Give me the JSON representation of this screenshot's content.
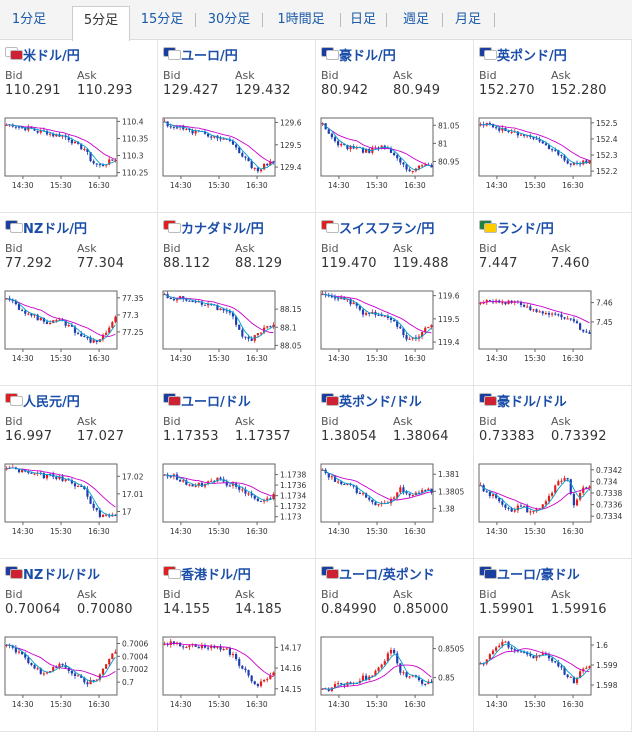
{
  "tabs": [
    {
      "label": "1分足",
      "active": false
    },
    {
      "label": "5分足",
      "active": true
    },
    {
      "label": "15分足",
      "active": false
    },
    {
      "label": "30分足",
      "active": false
    },
    {
      "label": "1時間足",
      "active": false
    },
    {
      "label": "日足",
      "active": false
    },
    {
      "label": "週足",
      "active": false
    },
    {
      "label": "月足",
      "active": false
    }
  ],
  "labels": {
    "bid": "Bid",
    "ask": "Ask"
  },
  "colors": {
    "link": "#1a4da8",
    "up": "#e0201e",
    "down": "#1f3cb0",
    "ma_long": "#cc00cc",
    "ma_short": "#00a0d0"
  },
  "pairs": [
    {
      "name": "米ドル/円",
      "bid": "110.291",
      "ask": "110.293",
      "flags": [
        "#ffffff",
        "#cc2233"
      ],
      "chart_data": {
        "type": "candlestick",
        "x_ticks": [
          "14:30",
          "15:30",
          "16:30"
        ],
        "y_ticks": [
          "110.4",
          "110.35",
          "110.3",
          "110.25"
        ],
        "ylim": [
          110.24,
          110.41
        ],
        "trend": [
          110.39,
          110.39,
          110.38,
          110.38,
          110.37,
          110.37,
          110.36,
          110.36,
          110.35,
          110.33,
          110.32,
          110.28,
          110.27,
          110.28,
          110.29
        ],
        "ma": true
      }
    },
    {
      "name": "ユーロ/円",
      "bid": "129.427",
      "ask": "129.432",
      "flags": [
        "#1a3da0",
        "#ffffff"
      ],
      "chart_data": {
        "type": "candlestick",
        "x_ticks": [
          "14:30",
          "15:30",
          "16:30"
        ],
        "y_ticks": [
          "129.6",
          "129.5",
          "129.4"
        ],
        "ylim": [
          129.36,
          129.62
        ],
        "trend": [
          129.6,
          129.58,
          129.58,
          129.56,
          129.56,
          129.55,
          129.54,
          129.53,
          129.52,
          129.49,
          129.45,
          129.41,
          129.39,
          129.41,
          129.42
        ],
        "ma": true
      }
    },
    {
      "name": "豪ドル/円",
      "bid": "80.942",
      "ask": "80.949",
      "flags": [
        "#1a3da0",
        "#ffffff"
      ],
      "chart_data": {
        "type": "candlestick",
        "x_ticks": [
          "14:30",
          "15:30",
          "16:30"
        ],
        "y_ticks": [
          "81.05",
          "81",
          "80.95"
        ],
        "ylim": [
          80.91,
          81.07
        ],
        "trend": [
          81.05,
          81.02,
          81.0,
          80.99,
          80.99,
          80.98,
          80.98,
          80.99,
          80.99,
          80.97,
          80.95,
          80.92,
          80.93,
          80.94,
          80.94
        ],
        "ma": true
      }
    },
    {
      "name": "英ポンド/円",
      "bid": "152.270",
      "ask": "152.280",
      "flags": [
        "#1a3da0",
        "#ffffff"
      ],
      "chart_data": {
        "type": "candlestick",
        "x_ticks": [
          "14:30",
          "15:30",
          "16:30"
        ],
        "y_ticks": [
          "152.5",
          "152.4",
          "152.3",
          "152.2"
        ],
        "ylim": [
          152.17,
          152.53
        ],
        "trend": [
          152.5,
          152.49,
          152.47,
          152.46,
          152.44,
          152.43,
          152.41,
          152.39,
          152.36,
          152.34,
          152.31,
          152.26,
          152.24,
          152.25,
          152.27
        ],
        "ma": true
      }
    },
    {
      "name": "NZドル/円",
      "bid": "77.292",
      "ask": "77.304",
      "flags": [
        "#1a3da0",
        "#ffffff"
      ],
      "chart_data": {
        "type": "candlestick",
        "x_ticks": [
          "14:30",
          "15:30",
          "16:30"
        ],
        "y_ticks": [
          "77.35",
          "77.3",
          "77.25"
        ],
        "ylim": [
          77.2,
          77.37
        ],
        "trend": [
          77.35,
          77.33,
          77.31,
          77.3,
          77.29,
          77.28,
          77.28,
          77.28,
          77.27,
          77.25,
          77.24,
          77.22,
          77.23,
          77.26,
          77.29
        ],
        "ma": true
      }
    },
    {
      "name": "カナダドル/円",
      "bid": "88.112",
      "ask": "88.129",
      "flags": [
        "#e02020",
        "#ffffff"
      ],
      "chart_data": {
        "type": "candlestick",
        "x_ticks": [
          "14:30",
          "15:30",
          "16:30"
        ],
        "y_ticks": [
          "88.15",
          "88.1",
          "88.05"
        ],
        "ylim": [
          88.04,
          88.2
        ],
        "trend": [
          88.19,
          88.18,
          88.18,
          88.17,
          88.17,
          88.16,
          88.16,
          88.15,
          88.15,
          88.12,
          88.08,
          88.06,
          88.08,
          88.1,
          88.11
        ],
        "ma": true
      }
    },
    {
      "name": "スイスフラン/円",
      "bid": "119.470",
      "ask": "119.488",
      "flags": [
        "#e02020",
        "#ffffff"
      ],
      "chart_data": {
        "type": "candlestick",
        "x_ticks": [
          "14:30",
          "15:30",
          "16:30"
        ],
        "y_ticks": [
          "119.6",
          "119.5",
          "119.4"
        ],
        "ylim": [
          119.37,
          119.62
        ],
        "trend": [
          119.6,
          119.6,
          119.59,
          119.58,
          119.56,
          119.53,
          119.52,
          119.52,
          119.51,
          119.49,
          119.45,
          119.4,
          119.42,
          119.45,
          119.47
        ],
        "ma": true
      }
    },
    {
      "name": "ランド/円",
      "bid": "7.447",
      "ask": "7.460",
      "flags": [
        "#208040",
        "#ffcc00"
      ],
      "chart_data": {
        "type": "candlestick",
        "x_ticks": [
          "14:30",
          "15:30",
          "16:30"
        ],
        "y_ticks": [
          "7.46",
          "7.45"
        ],
        "ylim": [
          7.436,
          7.466
        ],
        "trend": [
          7.461,
          7.461,
          7.461,
          7.46,
          7.46,
          7.459,
          7.458,
          7.456,
          7.455,
          7.454,
          7.453,
          7.452,
          7.45,
          7.446,
          7.445
        ],
        "ma": false
      }
    },
    {
      "name": "人民元/円",
      "bid": "16.997",
      "ask": "17.027",
      "flags": [
        "#e02020",
        "#ffffff"
      ],
      "chart_data": {
        "type": "candlestick",
        "x_ticks": [
          "14:30",
          "15:30",
          "16:30"
        ],
        "y_ticks": [
          "17.02",
          "17.01",
          "17"
        ],
        "ylim": [
          16.994,
          17.027
        ],
        "trend": [
          17.025,
          17.024,
          17.023,
          17.022,
          17.021,
          17.02,
          17.02,
          17.019,
          17.017,
          17.015,
          17.012,
          17.004,
          16.998,
          16.997,
          16.998
        ],
        "ma": true
      }
    },
    {
      "name": "ユーロ/ドル",
      "bid": "1.17353",
      "ask": "1.17357",
      "flags": [
        "#1a3da0",
        "#cc2233"
      ],
      "chart_data": {
        "type": "candlestick",
        "x_ticks": [
          "14:30",
          "15:30",
          "16:30"
        ],
        "y_ticks": [
          "1.1738",
          "1.1736",
          "1.1734",
          "1.1732",
          "1.173"
        ],
        "ylim": [
          1.1729,
          1.174
        ],
        "trend": [
          1.1738,
          1.1738,
          1.1737,
          1.1736,
          1.1736,
          1.1736,
          1.1737,
          1.1737,
          1.1736,
          1.1736,
          1.1735,
          1.1734,
          1.1733,
          1.1733,
          1.1734
        ],
        "ma": true
      }
    },
    {
      "name": "英ポンド/ドル",
      "bid": "1.38054",
      "ask": "1.38064",
      "flags": [
        "#1a3da0",
        "#cc2233"
      ],
      "chart_data": {
        "type": "candlestick",
        "x_ticks": [
          "14:30",
          "15:30",
          "16:30"
        ],
        "y_ticks": [
          "1.381",
          "1.3805",
          "1.38"
        ],
        "ylim": [
          1.3796,
          1.3813
        ],
        "trend": [
          1.3811,
          1.3809,
          1.3808,
          1.3807,
          1.3806,
          1.3804,
          1.3803,
          1.3801,
          1.3801,
          1.3803,
          1.3806,
          1.3804,
          1.3804,
          1.3806,
          1.3805
        ],
        "ma": true
      }
    },
    {
      "name": "豪ドル/ドル",
      "bid": "0.73383",
      "ask": "0.73392",
      "flags": [
        "#1a3da0",
        "#cc2233"
      ],
      "chart_data": {
        "type": "candlestick",
        "x_ticks": [
          "14:30",
          "15:30",
          "16:30"
        ],
        "y_ticks": [
          "0.7342",
          "0.734",
          "0.7338",
          "0.7336",
          "0.7334"
        ],
        "ylim": [
          0.7333,
          0.7343
        ],
        "trend": [
          0.7339,
          0.7338,
          0.7337,
          0.7336,
          0.7335,
          0.7336,
          0.7335,
          0.7335,
          0.7336,
          0.7338,
          0.734,
          0.7341,
          0.7336,
          0.7339,
          0.7339
        ],
        "ma": true
      }
    },
    {
      "name": "NZドル/ドル",
      "bid": "0.70064",
      "ask": "0.70080",
      "flags": [
        "#1a3da0",
        "#cc2233"
      ],
      "chart_data": {
        "type": "candlestick",
        "x_ticks": [
          "14:30",
          "15:30",
          "16:30"
        ],
        "y_ticks": [
          "0.7006",
          "0.7004",
          "0.7002",
          "0.7"
        ],
        "ylim": [
          0.6998,
          0.7007
        ],
        "trend": [
          0.7006,
          0.7005,
          0.7004,
          0.7003,
          0.7002,
          0.7001,
          0.7002,
          0.7003,
          0.7002,
          0.7001,
          0.7,
          0.7,
          0.7001,
          0.7003,
          0.7005
        ],
        "ma": true
      }
    },
    {
      "name": "香港ドル/円",
      "bid": "14.155",
      "ask": "14.185",
      "flags": [
        "#e02020",
        "#ffffff"
      ],
      "chart_data": {
        "type": "candlestick",
        "x_ticks": [
          "14:30",
          "15:30",
          "16:30"
        ],
        "y_ticks": [
          "14.17",
          "14.16",
          "14.15"
        ],
        "ylim": [
          14.147,
          14.175
        ],
        "trend": [
          14.172,
          14.172,
          14.171,
          14.171,
          14.171,
          14.17,
          14.17,
          14.17,
          14.169,
          14.165,
          14.16,
          14.155,
          14.152,
          14.155,
          14.158
        ],
        "ma": false
      }
    },
    {
      "name": "ユーロ/英ポンド",
      "bid": "0.84990",
      "ask": "0.85000",
      "flags": [
        "#1a3da0",
        "#cc2233"
      ],
      "chart_data": {
        "type": "candlestick",
        "x_ticks": [
          "14:30",
          "15:30",
          "16:30"
        ],
        "y_ticks": [
          "0.8505",
          "0.85"
        ],
        "ylim": [
          0.8497,
          0.8507
        ],
        "trend": [
          0.8498,
          0.8498,
          0.8499,
          0.8499,
          0.8499,
          0.85,
          0.85,
          0.8501,
          0.8503,
          0.8505,
          0.8501,
          0.85,
          0.85,
          0.8499,
          0.8499
        ],
        "ma": true
      }
    },
    {
      "name": "ユーロ/豪ドル",
      "bid": "1.59901",
      "ask": "1.59916",
      "flags": [
        "#1a3da0",
        "#1a3da0"
      ],
      "chart_data": {
        "type": "candlestick",
        "x_ticks": [
          "14:30",
          "15:30",
          "16:30"
        ],
        "y_ticks": [
          "1.6",
          "1.599",
          "1.598"
        ],
        "ylim": [
          1.5975,
          1.6004
        ],
        "trend": [
          1.599,
          1.5994,
          1.5998,
          1.6001,
          1.5999,
          1.5997,
          1.5995,
          1.5994,
          1.5995,
          1.5993,
          1.599,
          1.5985,
          1.5982,
          1.5987,
          1.599
        ],
        "ma": true
      }
    }
  ]
}
